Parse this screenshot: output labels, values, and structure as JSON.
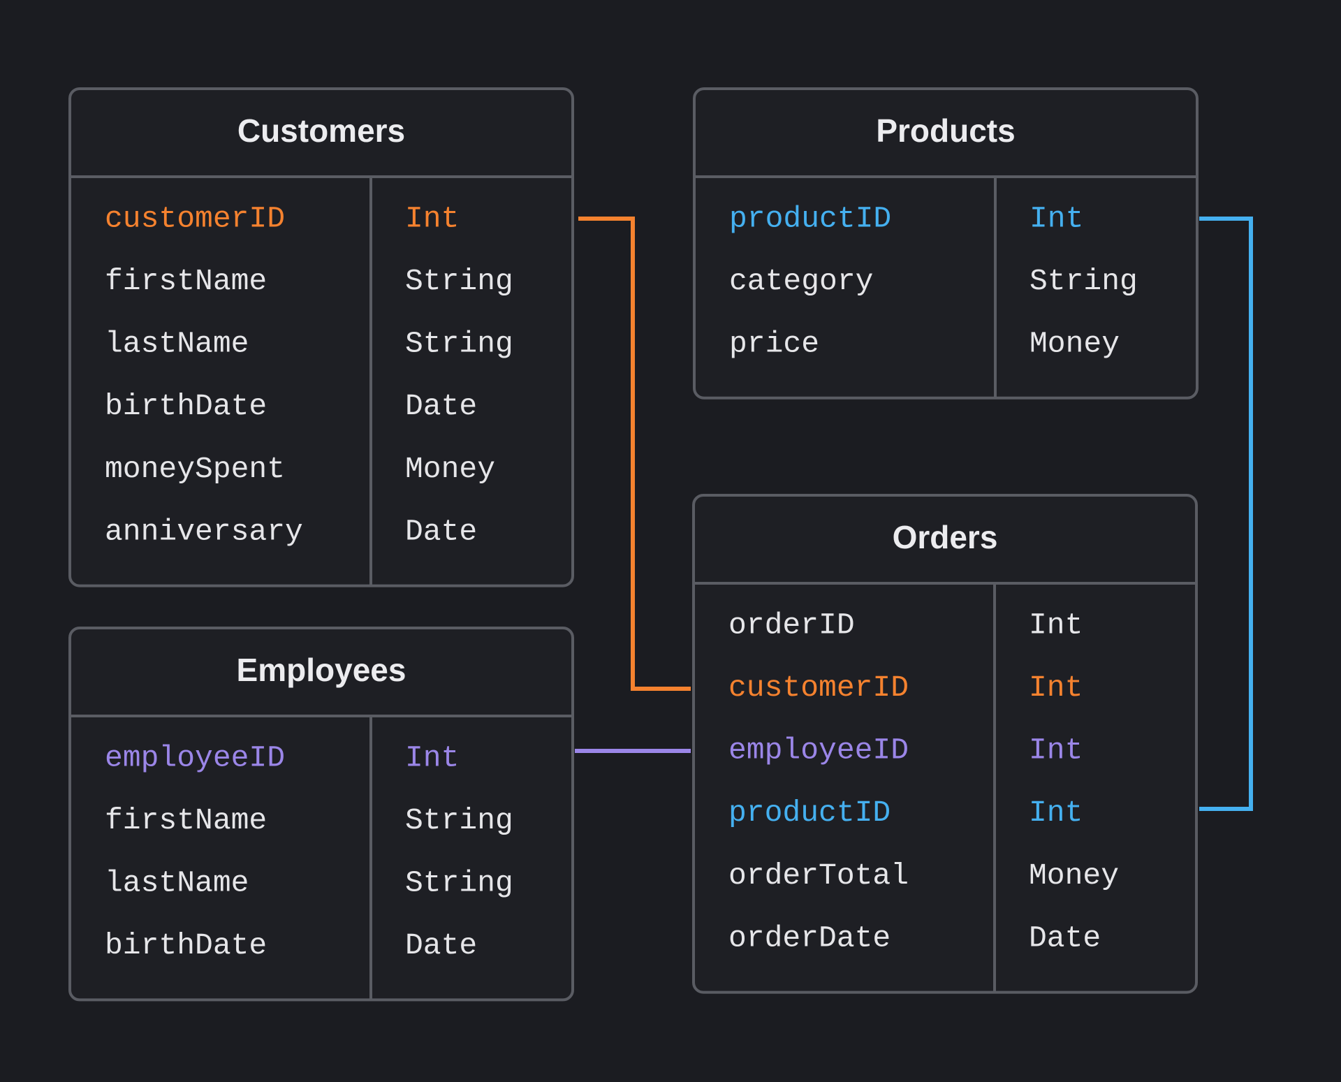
{
  "tables": [
    {
      "title": "Customers",
      "fields": [
        {
          "name": "customerID",
          "type": "Int",
          "color": "#f5822f"
        },
        {
          "name": "firstName",
          "type": "String"
        },
        {
          "name": "lastName",
          "type": "String"
        },
        {
          "name": "birthDate",
          "type": "Date"
        },
        {
          "name": "moneySpent",
          "type": "Money"
        },
        {
          "name": "anniversary",
          "type": "Date"
        }
      ]
    },
    {
      "title": "Products",
      "fields": [
        {
          "name": "productID",
          "type": "Int",
          "color": "#45b0f0"
        },
        {
          "name": "category",
          "type": "String"
        },
        {
          "name": "price",
          "type": "Money"
        }
      ]
    },
    {
      "title": "Orders",
      "fields": [
        {
          "name": "orderID",
          "type": "Int"
        },
        {
          "name": "customerID",
          "type": "Int",
          "color": "#f5822f"
        },
        {
          "name": "employeeID",
          "type": "Int",
          "color": "#9b86e8"
        },
        {
          "name": "productID",
          "type": "Int",
          "color": "#45b0f0"
        },
        {
          "name": "orderTotal",
          "type": "Money"
        },
        {
          "name": "orderDate",
          "type": "Date"
        }
      ]
    },
    {
      "title": "Employees",
      "fields": [
        {
          "name": "employeeID",
          "type": "Int",
          "color": "#9b86e8"
        },
        {
          "name": "firstName",
          "type": "String"
        },
        {
          "name": "lastName",
          "type": "String"
        },
        {
          "name": "birthDate",
          "type": "Date"
        }
      ]
    }
  ]
}
